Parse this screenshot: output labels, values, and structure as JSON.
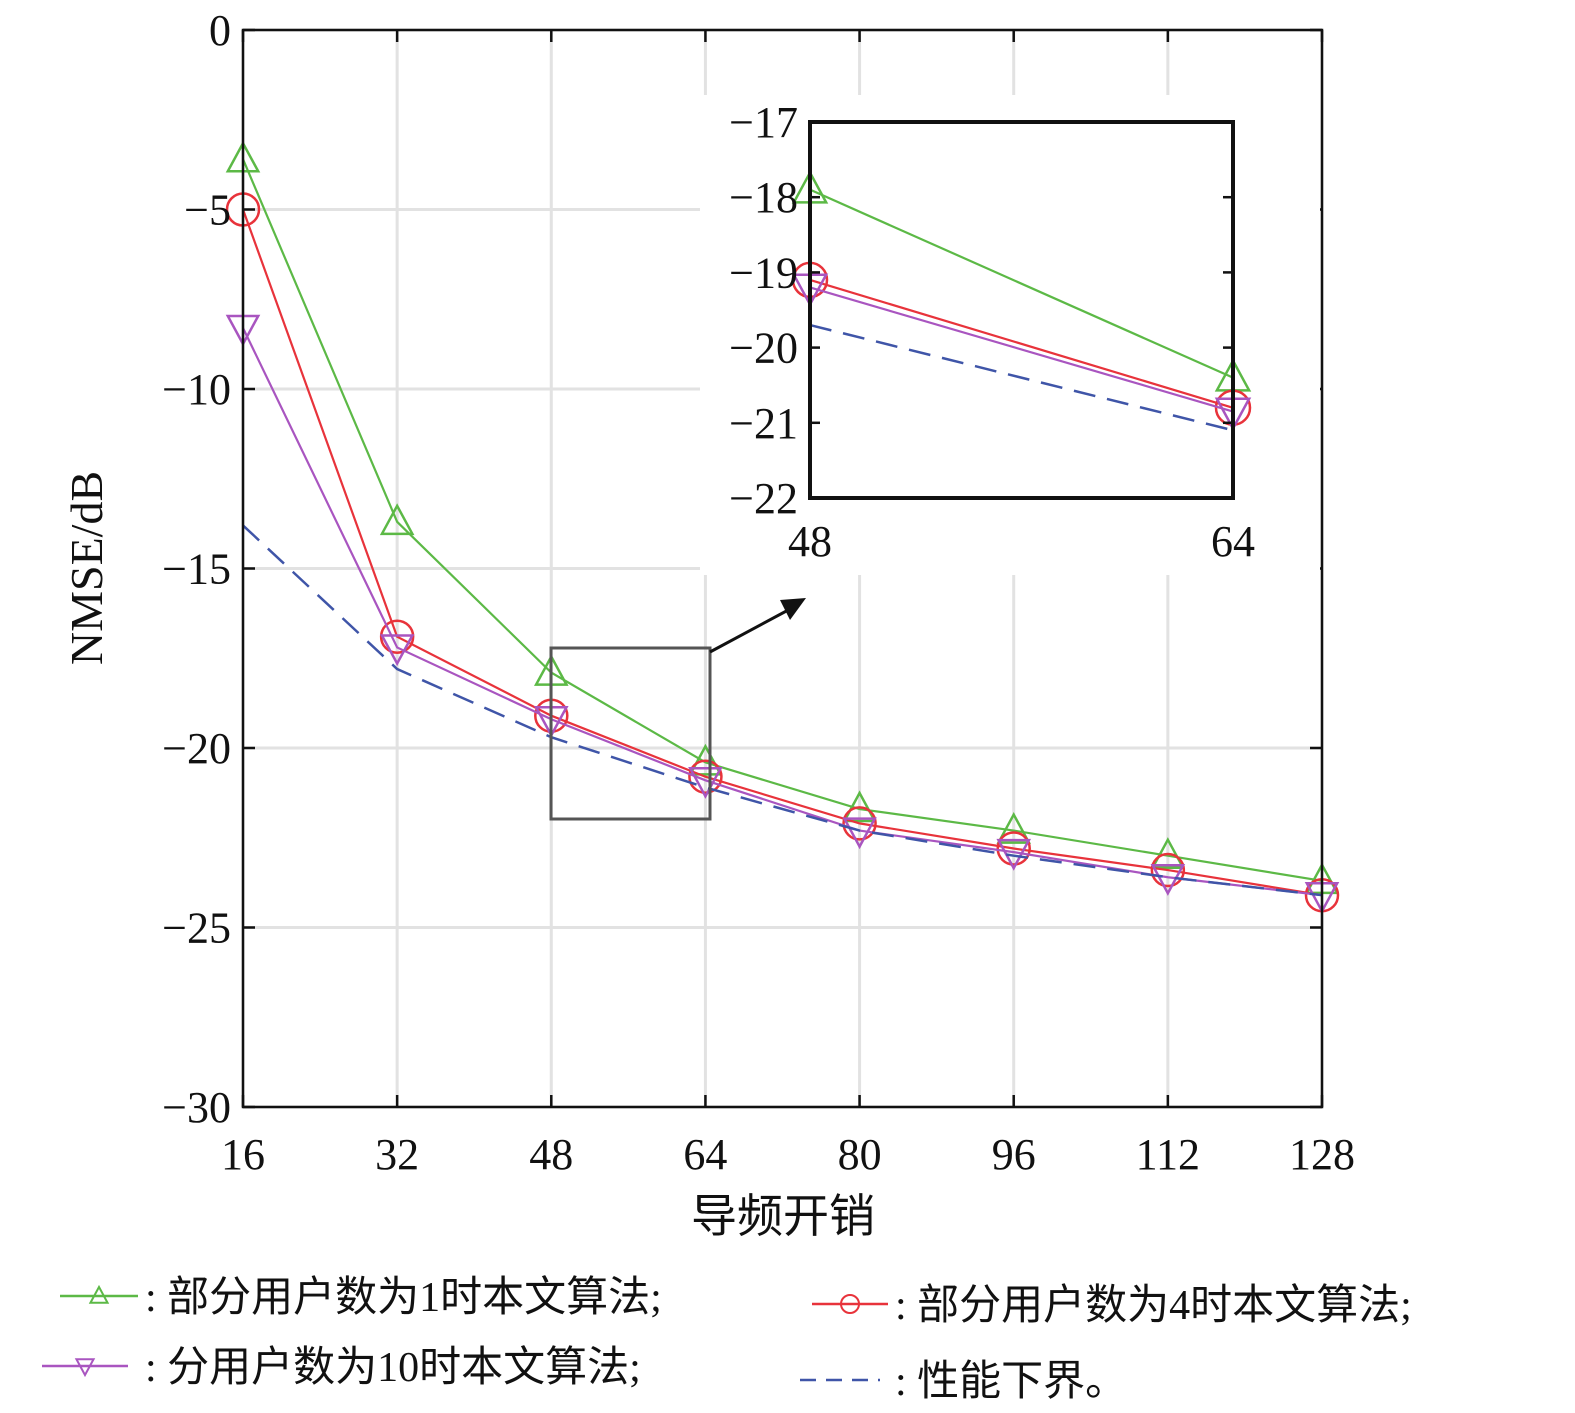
{
  "chart_data": [
    {
      "type": "line",
      "xlabel": "导频开销",
      "ylabel": "NMSE/dB",
      "xlim": [
        16,
        128
      ],
      "ylim": [
        -30,
        0
      ],
      "xticks": [
        16,
        32,
        48,
        64,
        80,
        96,
        112,
        128
      ],
      "yticks": [
        0,
        -5,
        -10,
        -15,
        -20,
        -25,
        -30
      ],
      "ytick_labels": [
        "0",
        "−5",
        "−10",
        "−15",
        "−20",
        "−25",
        "−30"
      ],
      "grid": true,
      "legend_position": "bottom",
      "x": [
        16,
        32,
        48,
        64,
        80,
        96,
        112,
        128
      ],
      "series": [
        {
          "name": ": 部分用户数为1时本文算法;",
          "marker": "triangle-up",
          "color": "#5cb946",
          "dash": "solid",
          "values": [
            -3.6,
            -13.7,
            -17.9,
            -20.4,
            -21.7,
            -22.3,
            -23.0,
            -23.7
          ]
        },
        {
          "name": ": 部分用户数为4时本文算法;",
          "marker": "circle",
          "color": "#e8333b",
          "dash": "solid",
          "values": [
            -5.0,
            -16.9,
            -19.1,
            -20.8,
            -22.1,
            -22.8,
            -23.4,
            -24.1
          ]
        },
        {
          "name": ": 分用户数为10时本文算法;",
          "marker": "triangle-down",
          "color": "#a955c0",
          "dash": "solid",
          "values": [
            -8.3,
            -17.2,
            -19.2,
            -20.9,
            -22.3,
            -22.9,
            -23.6,
            -24.1
          ]
        },
        {
          "name": ": 性能下界。",
          "marker": "none",
          "color": "#3f55a8",
          "dash": "dashed",
          "values": [
            -13.8,
            -17.8,
            -19.7,
            -21.1,
            -22.3,
            -23.0,
            -23.6,
            -24.1
          ]
        }
      ]
    },
    {
      "type": "line",
      "xlim": [
        48,
        64
      ],
      "ylim": [
        -22,
        -17
      ],
      "xticks": [
        48,
        64
      ],
      "yticks": [
        -17,
        -18,
        -19,
        -20,
        -21,
        -22
      ],
      "ytick_labels": [
        "−17",
        "−18",
        "−19",
        "−20",
        "−21",
        "−22"
      ],
      "grid": false,
      "x": [
        48,
        64
      ],
      "series": [
        {
          "marker": "triangle-up",
          "color": "#5cb946",
          "dash": "solid",
          "values": [
            -17.9,
            -20.4
          ]
        },
        {
          "marker": "circle",
          "color": "#e8333b",
          "dash": "solid",
          "values": [
            -19.1,
            -20.8
          ]
        },
        {
          "marker": "triangle-down",
          "color": "#a955c0",
          "dash": "solid",
          "values": [
            -19.2,
            -20.85
          ]
        },
        {
          "marker": "none",
          "color": "#3f55a8",
          "dash": "dashed",
          "values": [
            -19.7,
            -21.1
          ]
        }
      ]
    }
  ]
}
